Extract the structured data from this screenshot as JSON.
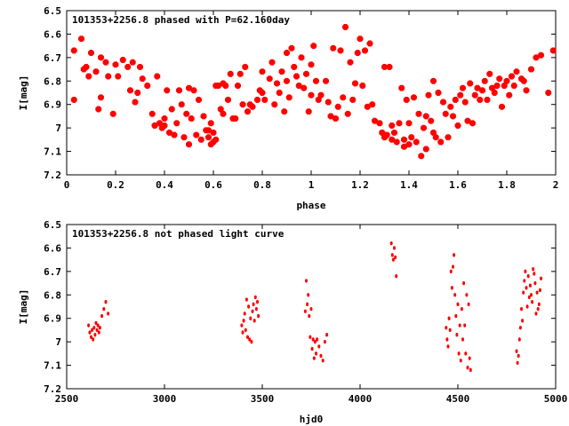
{
  "chart_data": [
    {
      "type": "scatter",
      "title": "101353+2256.8 phased with P=62.160day",
      "xlabel": "phase",
      "ylabel": "I[mag]",
      "xlim": [
        0,
        2
      ],
      "ylim": [
        6.5,
        7.2
      ],
      "y_inverted": true,
      "xticks": [
        "0",
        "0.2",
        "0.4",
        "0.6",
        "0.8",
        "1",
        "1.2",
        "1.4",
        "1.6",
        "1.8",
        "2"
      ],
      "yticks": [
        "6.5",
        "6.6",
        "6.7",
        "6.8",
        "6.9",
        "7",
        "7.1",
        "7.2"
      ],
      "marker": "star",
      "color": "#ff0000",
      "x": [
        0.03,
        0.03,
        0.06,
        0.07,
        0.08,
        0.09,
        0.1,
        0.12,
        0.13,
        0.14,
        0.14,
        0.16,
        0.17,
        0.19,
        0.2,
        0.21,
        0.23,
        0.25,
        0.26,
        0.27,
        0.28,
        0.29,
        0.3,
        0.31,
        0.33,
        0.35,
        0.36,
        0.37,
        0.38,
        0.39,
        0.4,
        0.4,
        0.41,
        0.42,
        0.43,
        0.44,
        0.45,
        0.46,
        0.47,
        0.48,
        0.49,
        0.5,
        0.5,
        0.51,
        0.52,
        0.53,
        0.54,
        0.55,
        0.56,
        0.57,
        0.58,
        0.58,
        0.59,
        0.59,
        0.6,
        0.6,
        0.61,
        0.61,
        0.62,
        0.63,
        0.64,
        0.64,
        0.65,
        0.66,
        0.67,
        0.68,
        0.69,
        0.7,
        0.71,
        0.72,
        0.73,
        0.74,
        0.75,
        0.76,
        0.78,
        0.79,
        0.8,
        0.8,
        0.81,
        0.83,
        0.84,
        0.85,
        0.86,
        0.87,
        0.88,
        0.89,
        0.9,
        0.9,
        0.91,
        0.92,
        0.93,
        0.94,
        0.95,
        0.96,
        0.97,
        0.98,
        0.99,
        1.0,
        1.0,
        1.01,
        1.02,
        1.03,
        1.04,
        1.06,
        1.07,
        1.08,
        1.09,
        1.1,
        1.11,
        1.12,
        1.13,
        1.14,
        1.15,
        1.16,
        1.17,
        1.18,
        1.19,
        1.2,
        1.21,
        1.22,
        1.23,
        1.24,
        1.25,
        1.26,
        1.28,
        1.29,
        1.3,
        1.3,
        1.31,
        1.32,
        1.33,
        1.33,
        1.34,
        1.35,
        1.36,
        1.37,
        1.38,
        1.38,
        1.39,
        1.4,
        1.4,
        1.41,
        1.42,
        1.43,
        1.44,
        1.45,
        1.46,
        1.47,
        1.47,
        1.48,
        1.49,
        1.5,
        1.5,
        1.51,
        1.52,
        1.53,
        1.54,
        1.55,
        1.56,
        1.57,
        1.58,
        1.59,
        1.6,
        1.61,
        1.62,
        1.63,
        1.64,
        1.65,
        1.66,
        1.67,
        1.68,
        1.69,
        1.7,
        1.71,
        1.72,
        1.73,
        1.74,
        1.75,
        1.76,
        1.77,
        1.78,
        1.79,
        1.8,
        1.81,
        1.82,
        1.83,
        1.84,
        1.86,
        1.87,
        1.88,
        1.9,
        1.92,
        1.94,
        1.97,
        1.99
      ],
      "y": [
        6.67,
        6.88,
        6.62,
        6.75,
        6.74,
        6.78,
        6.68,
        6.76,
        6.92,
        6.87,
        6.7,
        6.72,
        6.78,
        6.94,
        6.73,
        6.78,
        6.71,
        6.74,
        6.84,
        6.72,
        6.89,
        6.85,
        6.74,
        6.79,
        6.82,
        6.94,
        6.99,
        6.78,
        6.98,
        7.0,
        6.96,
        6.99,
        6.84,
        7.02,
        6.92,
        7.03,
        6.98,
        6.84,
        6.9,
        7.04,
        6.94,
        6.83,
        7.07,
        6.96,
        6.84,
        7.03,
        6.88,
        7.05,
        6.95,
        7.01,
        7.01,
        7.04,
        7.07,
        6.98,
        7.02,
        7.06,
        6.82,
        7.05,
        6.82,
        6.92,
        6.81,
        6.94,
        6.82,
        6.88,
        6.77,
        6.96,
        6.96,
        6.82,
        6.77,
        6.9,
        6.74,
        6.93,
        6.9,
        6.91,
        6.88,
        6.84,
        6.85,
        6.76,
        6.88,
        6.79,
        6.72,
        6.9,
        6.81,
        6.85,
        6.76,
        6.93,
        6.8,
        6.68,
        6.87,
        6.66,
        6.74,
        6.78,
        6.82,
        6.7,
        6.83,
        6.77,
        6.93,
        6.73,
        6.86,
        6.65,
        6.8,
        6.88,
        6.86,
        6.8,
        6.89,
        6.95,
        6.66,
        6.96,
        6.91,
        6.67,
        6.87,
        6.57,
        6.94,
        6.72,
        6.88,
        6.81,
        6.68,
        6.62,
        6.82,
        6.67,
        6.91,
        6.64,
        6.9,
        6.97,
        6.98,
        7.02,
        6.74,
        7.04,
        7.03,
        6.74,
        7.05,
        6.99,
        7.02,
        7.06,
        6.98,
        6.83,
        7.08,
        7.05,
        6.88,
        7.07,
        6.98,
        7.04,
        6.87,
        7.06,
        6.94,
        7.12,
        7.0,
        6.95,
        7.09,
        6.86,
        6.97,
        7.02,
        6.8,
        7.04,
        6.85,
        7.06,
        6.89,
        6.94,
        7.04,
        6.91,
        6.95,
        6.88,
        6.99,
        6.86,
        6.83,
        6.89,
        6.97,
        6.81,
        6.98,
        6.86,
        6.83,
        6.88,
        6.84,
        6.8,
        6.88,
        6.77,
        6.83,
        6.85,
        6.82,
        6.79,
        6.91,
        6.82,
        6.8,
        6.86,
        6.78,
        6.82,
        6.76,
        6.79,
        6.8,
        6.84,
        6.75,
        6.7,
        6.69,
        6.85,
        6.67
      ]
    },
    {
      "type": "scatter",
      "title": "101353+2256.8 not phased light curve",
      "xlabel": "hjd0",
      "ylabel": "I[mag]",
      "xlim": [
        2500,
        5000
      ],
      "ylim": [
        6.5,
        7.2
      ],
      "y_inverted": true,
      "xticks": [
        "2500",
        "3000",
        "3500",
        "4000",
        "4500",
        "5000"
      ],
      "yticks": [
        "6.5",
        "6.6",
        "6.7",
        "6.8",
        "6.9",
        "7",
        "7.1",
        "7.2"
      ],
      "marker": "dot",
      "color": "#ff0000",
      "x": [
        2612,
        2618,
        2625,
        2630,
        2635,
        2640,
        2645,
        2650,
        2655,
        2660,
        2665,
        2670,
        2680,
        2690,
        2700,
        2712,
        3395,
        3400,
        3405,
        3410,
        3415,
        3420,
        3425,
        3430,
        3435,
        3440,
        3445,
        3450,
        3455,
        3460,
        3465,
        3470,
        3475,
        3480,
        3720,
        3725,
        3730,
        3735,
        3740,
        3745,
        3750,
        3755,
        3760,
        3765,
        3770,
        3775,
        3780,
        3790,
        3800,
        3810,
        3820,
        3830,
        4160,
        4165,
        4170,
        4175,
        4180,
        4185,
        4440,
        4445,
        4450,
        4455,
        4460,
        4465,
        4470,
        4475,
        4480,
        4485,
        4490,
        4495,
        4500,
        4505,
        4510,
        4515,
        4520,
        4525,
        4530,
        4535,
        4540,
        4545,
        4550,
        4555,
        4560,
        4565,
        4800,
        4805,
        4810,
        4815,
        4820,
        4825,
        4830,
        4835,
        4840,
        4845,
        4850,
        4855,
        4860,
        4865,
        4870,
        4875,
        4880,
        4885,
        4890,
        4895,
        4900,
        4905,
        4910,
        4915,
        4920,
        4925
      ],
      "y": [
        6.93,
        6.96,
        6.98,
        6.95,
        6.99,
        6.94,
        6.97,
        6.92,
        6.95,
        6.93,
        6.96,
        6.94,
        6.89,
        6.86,
        6.83,
        6.88,
        6.93,
        6.96,
        6.91,
        6.88,
        6.95,
        6.82,
        6.98,
        6.85,
        6.99,
        6.9,
        7.0,
        6.87,
        6.84,
        6.91,
        6.81,
        6.86,
        6.83,
        6.89,
        6.87,
        6.74,
        6.84,
        6.8,
        6.89,
        6.98,
        6.86,
        7.03,
        6.99,
        7.07,
        7.0,
        7.05,
        6.99,
        7.02,
        7.06,
        7.08,
        7.0,
        6.97,
        6.58,
        6.63,
        6.65,
        6.6,
        6.64,
        6.72,
        6.94,
        6.99,
        7.02,
        6.9,
        6.95,
        6.7,
        6.77,
        6.68,
        6.63,
        6.8,
        6.89,
        6.97,
        6.84,
        7.05,
        6.93,
        7.08,
        6.86,
        6.99,
        6.75,
        6.93,
        7.05,
        6.8,
        7.11,
        6.84,
        7.07,
        7.12,
        7.04,
        7.09,
        7.06,
        6.99,
        6.94,
        6.86,
        6.91,
        6.79,
        6.74,
        6.7,
        6.77,
        6.85,
        6.72,
        6.81,
        6.76,
        6.8,
        6.83,
        6.69,
        6.71,
        6.75,
        6.88,
        6.79,
        6.86,
        6.84,
        6.78,
        6.73
      ]
    }
  ]
}
